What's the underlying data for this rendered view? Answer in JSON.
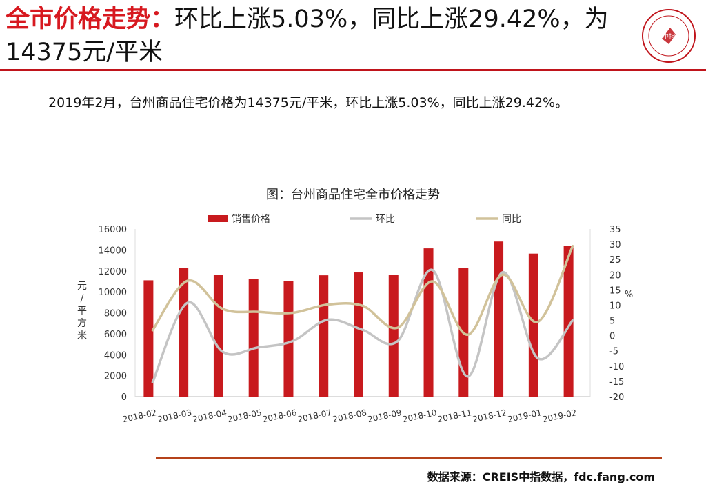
{
  "header": {
    "title_highlight": "全市价格走势：",
    "title_rest": "环比上涨5.03%，同比上涨29.42%，为14375元/平米",
    "logo_text": "中指"
  },
  "summary": "2019年2月，台州商品住宅价格为14375元/平米，环比上涨5.03%，同比上涨29.42%。",
  "source": "数据来源：CREIS中指数据，fdc.fang.com",
  "chart_data": {
    "type": "bar",
    "title": "图：台州商品住宅全市价格走势",
    "categories": [
      "2018-02",
      "2018-03",
      "2018-04",
      "2018-05",
      "2018-06",
      "2018-07",
      "2018-08",
      "2018-09",
      "2018-10",
      "2018-11",
      "2018-12",
      "2019-01",
      "2019-02"
    ],
    "series": [
      {
        "name": "销售价格",
        "type": "bar",
        "axis": "left",
        "color": "#c81a1e",
        "values": [
          11100,
          12300,
          11650,
          11200,
          11000,
          11580,
          11850,
          11650,
          14150,
          12250,
          14800,
          13650,
          14375
        ]
      },
      {
        "name": "环比",
        "type": "line",
        "axis": "right",
        "color": "#c4c4c4",
        "values": [
          -15.3,
          10.8,
          -5.3,
          -3.9,
          -1.8,
          5.2,
          1.9,
          -1.8,
          21.5,
          -13.4,
          20.8,
          -7.4,
          5.03
        ]
      },
      {
        "name": "同比",
        "type": "line",
        "axis": "right",
        "color": "#d1c29a",
        "values": [
          1.8,
          18.0,
          8.8,
          7.8,
          7.5,
          10.2,
          9.8,
          2.6,
          17.8,
          0.3,
          20.0,
          4.5,
          29.42
        ]
      }
    ],
    "ylabel": "元/平方米",
    "ylabel_right": "%",
    "ylim": [
      0,
      16000
    ],
    "yticks": [
      0,
      2000,
      4000,
      6000,
      8000,
      10000,
      12000,
      14000,
      16000
    ],
    "y2lim": [
      -20,
      35
    ],
    "y2ticks": [
      -20,
      -15,
      -10,
      -5,
      0,
      5,
      10,
      15,
      20,
      25,
      30,
      35
    ],
    "legend": "top",
    "grid": false
  }
}
